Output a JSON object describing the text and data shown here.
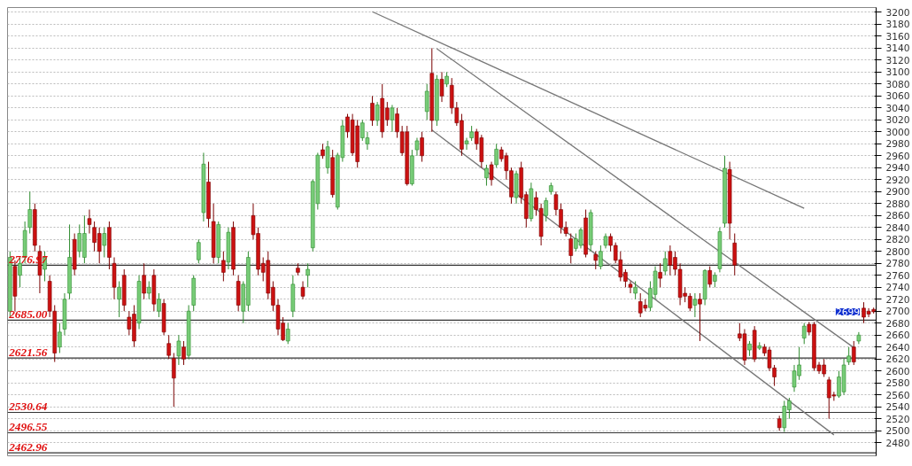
{
  "chart_data": {
    "type": "candlestick",
    "categories": [
      null,
      null,
      null,
      null,
      null,
      null,
      null,
      null,
      null,
      null,
      null,
      null,
      null,
      null,
      null,
      null,
      null,
      null,
      null,
      null,
      null,
      null,
      null,
      null,
      null,
      null,
      null,
      null,
      null,
      null,
      null,
      null,
      null,
      null,
      null,
      null,
      null,
      null,
      null,
      null,
      null,
      null,
      null,
      null,
      null,
      null,
      null,
      null,
      null,
      null,
      null,
      null,
      null,
      null,
      null,
      null,
      null,
      null,
      null,
      null,
      null,
      null,
      null,
      null,
      null,
      null,
      null,
      null,
      null,
      null,
      null,
      null,
      null,
      null,
      null,
      null,
      null,
      null,
      null,
      null,
      null,
      null,
      null,
      null,
      null,
      null,
      null,
      null,
      null,
      null,
      null,
      null,
      null,
      null,
      null,
      null,
      null,
      null,
      null,
      null,
      null,
      null,
      null,
      null,
      null,
      null,
      null,
      null,
      null,
      null,
      null,
      null,
      null,
      null,
      null,
      null,
      null,
      null,
      null,
      null,
      null,
      null,
      null,
      null,
      null,
      null,
      null,
      null,
      null,
      null,
      null,
      null,
      null,
      null,
      null,
      null,
      null,
      null,
      null,
      null,
      null,
      null,
      null,
      null,
      null,
      null,
      null,
      null,
      null,
      null,
      null,
      null,
      null,
      null,
      null,
      null,
      null,
      null,
      null,
      null,
      null,
      null,
      null,
      null,
      null,
      null,
      null,
      null,
      null,
      null,
      null,
      null,
      null,
      null,
      null
    ],
    "ohlc": [
      [
        2700,
        2800,
        2690,
        2790
      ],
      [
        2775,
        2785,
        2700,
        2725
      ],
      [
        2760,
        2790,
        2740,
        2780
      ],
      [
        2790,
        2850,
        2780,
        2835
      ],
      [
        2840,
        2900,
        2830,
        2870
      ],
      [
        2870,
        2880,
        2800,
        2810
      ],
      [
        2800,
        2810,
        2730,
        2760
      ],
      [
        2770,
        2800,
        2750,
        2790
      ],
      [
        2750,
        2760,
        2690,
        2700
      ],
      [
        2700,
        2710,
        2615,
        2630
      ],
      [
        2640,
        2680,
        2630,
        2665
      ],
      [
        2670,
        2730,
        2660,
        2720
      ],
      [
        2730,
        2845,
        2720,
        2790
      ],
      [
        2820,
        2830,
        2760,
        2770
      ],
      [
        2800,
        2845,
        2790,
        2830
      ],
      [
        2790,
        2860,
        2780,
        2830
      ],
      [
        2855,
        2870,
        2830,
        2845
      ],
      [
        2840,
        2850,
        2800,
        2815
      ],
      [
        2830,
        2840,
        2780,
        2800
      ],
      [
        2810,
        2840,
        2790,
        2830
      ],
      [
        2840,
        2850,
        2770,
        2790
      ],
      [
        2780,
        2790,
        2720,
        2740
      ],
      [
        2720,
        2750,
        2690,
        2740
      ],
      [
        2760,
        2770,
        2700,
        2710
      ],
      [
        2690,
        2700,
        2660,
        2670
      ],
      [
        2695,
        2710,
        2640,
        2650
      ],
      [
        2680,
        2760,
        2670,
        2750
      ],
      [
        2760,
        2780,
        2720,
        2730
      ],
      [
        2730,
        2750,
        2720,
        2740
      ],
      [
        2760,
        2770,
        2700,
        2712
      ],
      [
        2700,
        2730,
        2690,
        2720
      ],
      [
        2713,
        2720,
        2660,
        2665
      ],
      [
        2646,
        2660,
        2620,
        2626
      ],
      [
        2621,
        2630,
        2540,
        2588
      ],
      [
        2625,
        2660,
        2610,
        2650
      ],
      [
        2640,
        2650,
        2610,
        2620
      ],
      [
        2626,
        2710,
        2620,
        2700
      ],
      [
        2710,
        2760,
        2700,
        2755
      ],
      [
        2786,
        2820,
        2780,
        2815
      ],
      [
        2865,
        2965,
        2850,
        2946
      ],
      [
        2916,
        2950,
        2840,
        2855
      ],
      [
        2850,
        2880,
        2780,
        2790
      ],
      [
        2790,
        2850,
        2780,
        2845
      ],
      [
        2785,
        2800,
        2750,
        2765
      ],
      [
        2782,
        2840,
        2770,
        2832
      ],
      [
        2840,
        2850,
        2760,
        2770
      ],
      [
        2750,
        2760,
        2700,
        2710
      ],
      [
        2700,
        2750,
        2680,
        2745
      ],
      [
        2710,
        2800,
        2700,
        2790
      ],
      [
        2860,
        2880,
        2820,
        2828
      ],
      [
        2830,
        2840,
        2760,
        2770
      ],
      [
        2780,
        2790,
        2750,
        2765
      ],
      [
        2785,
        2800,
        2720,
        2730
      ],
      [
        2740,
        2750,
        2700,
        2710
      ],
      [
        2710,
        2720,
        2660,
        2670
      ],
      [
        2680,
        2690,
        2650,
        2652
      ],
      [
        2650,
        2680,
        2645,
        2670
      ],
      [
        2700,
        2760,
        2690,
        2745
      ],
      [
        2772,
        2780,
        2760,
        2765
      ],
      [
        2740,
        2750,
        2720,
        2725
      ],
      [
        2760,
        2780,
        2740,
        2770
      ],
      [
        2806,
        2920,
        2800,
        2917
      ],
      [
        2880,
        2965,
        2870,
        2961
      ],
      [
        2970,
        2980,
        2955,
        2960
      ],
      [
        2940,
        2985,
        2930,
        2975
      ],
      [
        2957,
        2970,
        2890,
        2895
      ],
      [
        2874,
        2965,
        2870,
        2961
      ],
      [
        2957,
        3020,
        2950,
        3010
      ],
      [
        3025,
        3030,
        2990,
        3000
      ],
      [
        3020,
        3030,
        2960,
        2965
      ],
      [
        3010,
        3020,
        2940,
        2950
      ],
      [
        2990,
        3020,
        2985,
        3015
      ],
      [
        2980,
        3000,
        2970,
        2990
      ],
      [
        3048,
        3060,
        3010,
        3019
      ],
      [
        3019,
        3050,
        3010,
        3045
      ],
      [
        3056,
        3080,
        2990,
        3000
      ],
      [
        3040,
        3050,
        3010,
        3020
      ],
      [
        3020,
        3045,
        3000,
        3040
      ],
      [
        3030,
        3040,
        2990,
        3000
      ],
      [
        3000,
        3010,
        2960,
        2965
      ],
      [
        3000,
        3010,
        2910,
        2913
      ],
      [
        2913,
        2970,
        2910,
        2960
      ],
      [
        2970,
        2990,
        2960,
        2985
      ],
      [
        2990,
        3000,
        2950,
        2960
      ],
      [
        3034,
        3080,
        3020,
        3068
      ],
      [
        3098,
        3140,
        3000,
        3019
      ],
      [
        3019,
        3095,
        3010,
        3088
      ],
      [
        3088,
        3100,
        3050,
        3060
      ],
      [
        3080,
        3100,
        3075,
        3093
      ],
      [
        3078,
        3090,
        3030,
        3040
      ],
      [
        3040,
        3050,
        3010,
        3015
      ],
      [
        3019,
        3030,
        2960,
        2971
      ],
      [
        2980,
        2990,
        2970,
        2985
      ],
      [
        2990,
        3010,
        2985,
        3000
      ],
      [
        3000,
        3005,
        2970,
        2980
      ],
      [
        2990,
        2995,
        2940,
        2950
      ],
      [
        2923,
        2945,
        2910,
        2939
      ],
      [
        2945,
        2950,
        2910,
        2920
      ],
      [
        2945,
        2980,
        2940,
        2971
      ],
      [
        2970,
        2975,
        2950,
        2955
      ],
      [
        2960,
        2965,
        2920,
        2935
      ],
      [
        2935,
        2940,
        2880,
        2891
      ],
      [
        2890,
        2935,
        2880,
        2930
      ],
      [
        2940,
        2950,
        2880,
        2890
      ],
      [
        2895,
        2900,
        2840,
        2855
      ],
      [
        2855,
        2915,
        2850,
        2905
      ],
      [
        2890,
        2900,
        2860,
        2870
      ],
      [
        2872,
        2880,
        2810,
        2825
      ],
      [
        2860,
        2890,
        2850,
        2885
      ],
      [
        2900,
        2915,
        2895,
        2910
      ],
      [
        2895,
        2900,
        2860,
        2870
      ],
      [
        2870,
        2880,
        2830,
        2840
      ],
      [
        2840,
        2850,
        2825,
        2830
      ],
      [
        2821,
        2830,
        2780,
        2793
      ],
      [
        2805,
        2830,
        2800,
        2821
      ],
      [
        2810,
        2840,
        2805,
        2836
      ],
      [
        2856,
        2870,
        2790,
        2795
      ],
      [
        2811,
        2870,
        2800,
        2865
      ],
      [
        2795,
        2800,
        2770,
        2785
      ],
      [
        2775,
        2810,
        2770,
        2800
      ],
      [
        2810,
        2830,
        2805,
        2825
      ],
      [
        2825,
        2830,
        2800,
        2810
      ],
      [
        2810,
        2815,
        2780,
        2785
      ],
      [
        2786,
        2800,
        2750,
        2757
      ],
      [
        2765,
        2770,
        2740,
        2750
      ],
      [
        2745,
        2750,
        2730,
        2740
      ],
      [
        2730,
        2750,
        2720,
        2740
      ],
      [
        2716,
        2730,
        2690,
        2697
      ],
      [
        2710,
        2720,
        2700,
        2705
      ],
      [
        2706,
        2750,
        2700,
        2738
      ],
      [
        2728,
        2775,
        2720,
        2767
      ],
      [
        2765,
        2780,
        2740,
        2755
      ],
      [
        2767,
        2800,
        2760,
        2788
      ],
      [
        2800,
        2810,
        2760,
        2777
      ],
      [
        2790,
        2800,
        2760,
        2770
      ],
      [
        2770,
        2780,
        2710,
        2723
      ],
      [
        2730,
        2740,
        2715,
        2725
      ],
      [
        2725,
        2730,
        2700,
        2705
      ],
      [
        2710,
        2730,
        2690,
        2720
      ],
      [
        2720,
        2730,
        2650,
        2712
      ],
      [
        2720,
        2770,
        2710,
        2768
      ],
      [
        2768,
        2775,
        2740,
        2745
      ],
      [
        2750,
        2765,
        2740,
        2760
      ],
      [
        2771,
        2840,
        2765,
        2833
      ],
      [
        2847,
        2960,
        2840,
        2939
      ],
      [
        2937,
        2950,
        2820,
        2847
      ],
      [
        2814,
        2830,
        2760,
        2777
      ],
      [
        2662,
        2680,
        2650,
        2655
      ],
      [
        2662,
        2670,
        2610,
        2618
      ],
      [
        2635,
        2650,
        2625,
        2645
      ],
      [
        2668,
        2675,
        2615,
        2620
      ],
      [
        2638,
        2648,
        2635,
        2642
      ],
      [
        2640,
        2645,
        2625,
        2630
      ],
      [
        2635,
        2640,
        2600,
        2605
      ],
      [
        2605,
        2610,
        2575,
        2590
      ],
      [
        2520,
        2525,
        2500,
        2505
      ],
      [
        2505,
        2550,
        2498,
        2541
      ],
      [
        2535,
        2555,
        2520,
        2550
      ],
      [
        2573,
        2610,
        2565,
        2600
      ],
      [
        2592,
        2640,
        2585,
        2610
      ],
      [
        2655,
        2680,
        2645,
        2675
      ],
      [
        2678,
        2682,
        2660,
        2665
      ],
      [
        2678,
        2682,
        2600,
        2605
      ],
      [
        2610,
        2615,
        2595,
        2600
      ],
      [
        2610,
        2620,
        2590,
        2595
      ],
      [
        2585,
        2590,
        2520,
        2555
      ],
      [
        2560,
        2565,
        2550,
        2558
      ],
      [
        2558,
        2600,
        2555,
        2590
      ],
      [
        2565,
        2620,
        2560,
        2610
      ],
      [
        2615,
        2640,
        2610,
        2625
      ],
      [
        2640,
        2650,
        2610,
        2615
      ],
      [
        2650,
        2665,
        2645,
        2660
      ],
      [
        2705,
        2715,
        2680,
        2690
      ],
      [
        2700,
        2705,
        2690,
        2695
      ],
      [
        2703,
        2706,
        2696,
        2699
      ]
    ],
    "series": [
      {
        "type": "line",
        "color": "#777777",
        "values": [
          null,
          null,
          null,
          null,
          null,
          null,
          null,
          null,
          null,
          null,
          null,
          null,
          null,
          null,
          null,
          null,
          null,
          null,
          null,
          null,
          null,
          null,
          null,
          null,
          null,
          null,
          null,
          null,
          null,
          null,
          null,
          null,
          null,
          null,
          null,
          null,
          null,
          null,
          null,
          null,
          null,
          null,
          null,
          null,
          null,
          null,
          null,
          null,
          null,
          null,
          null,
          null,
          null,
          null,
          null,
          null,
          null,
          null,
          null,
          null,
          null,
          null,
          null,
          null,
          null,
          null,
          null,
          null,
          null,
          null,
          null,
          null,
          null,
          3201,
          null,
          null,
          null,
          null,
          null,
          null,
          null,
          null,
          null,
          null,
          null,
          null,
          null,
          null,
          null,
          null,
          null,
          null,
          null,
          null,
          null,
          null,
          null,
          null,
          null,
          null,
          null,
          null,
          null,
          null,
          null,
          null,
          null,
          null,
          null,
          null,
          null,
          null,
          null,
          null,
          null,
          null,
          null,
          null,
          null,
          null,
          null,
          null,
          null,
          null,
          null,
          null,
          null,
          null,
          null,
          null,
          null,
          null,
          null,
          null,
          null,
          null,
          null,
          null,
          null,
          null,
          null,
          null,
          null,
          null,
          null,
          null,
          null,
          null,
          null,
          null,
          null,
          null,
          null,
          null,
          null,
          null,
          null,
          null,
          null,
          null,
          2872,
          null,
          null,
          null,
          null,
          null,
          null,
          null,
          null,
          null,
          null,
          null,
          null,
          null,
          null
        ]
      },
      {
        "type": "line",
        "color": "#777777",
        "values": [
          null,
          null,
          null,
          null,
          null,
          null,
          null,
          null,
          null,
          null,
          null,
          null,
          null,
          null,
          null,
          null,
          null,
          null,
          null,
          null,
          null,
          null,
          null,
          null,
          null,
          null,
          null,
          null,
          null,
          null,
          null,
          null,
          null,
          null,
          null,
          null,
          null,
          null,
          null,
          null,
          null,
          null,
          null,
          null,
          null,
          null,
          null,
          null,
          null,
          null,
          null,
          null,
          null,
          null,
          null,
          null,
          null,
          null,
          null,
          null,
          null,
          null,
          null,
          null,
          null,
          null,
          null,
          null,
          null,
          null,
          null,
          null,
          null,
          null,
          null,
          null,
          null,
          null,
          null,
          null,
          null,
          null,
          null,
          null,
          null,
          null,
          3139,
          null,
          null,
          null,
          null,
          null,
          null,
          null,
          null,
          null,
          null,
          null,
          null,
          null,
          null,
          null,
          null,
          null,
          null,
          null,
          null,
          null,
          null,
          null,
          null,
          null,
          null,
          null,
          null,
          null,
          null,
          null,
          null,
          null,
          null,
          null,
          null,
          null,
          null,
          null,
          null,
          null,
          null,
          null,
          null,
          null,
          null,
          null,
          null,
          null,
          null,
          null,
          null,
          null,
          null,
          null,
          null,
          null,
          null,
          null,
          null,
          null,
          null,
          null,
          null,
          null,
          null,
          null,
          null,
          null,
          null,
          null,
          null,
          null,
          null,
          null,
          null,
          null,
          null,
          null,
          null,
          null,
          null,
          null,
          2639,
          null,
          null,
          null,
          null
        ]
      },
      {
        "type": "line",
        "color": "#777777",
        "values": [
          null,
          null,
          null,
          null,
          null,
          null,
          null,
          null,
          null,
          null,
          null,
          null,
          null,
          null,
          null,
          null,
          null,
          null,
          null,
          null,
          null,
          null,
          null,
          null,
          null,
          null,
          null,
          null,
          null,
          null,
          null,
          null,
          null,
          null,
          null,
          null,
          null,
          null,
          null,
          null,
          null,
          null,
          null,
          null,
          null,
          null,
          null,
          null,
          null,
          null,
          null,
          null,
          null,
          null,
          null,
          null,
          null,
          null,
          null,
          null,
          null,
          null,
          null,
          null,
          null,
          null,
          null,
          null,
          null,
          null,
          null,
          null,
          null,
          null,
          null,
          null,
          null,
          null,
          null,
          null,
          null,
          null,
          null,
          null,
          null,
          3003,
          null,
          null,
          null,
          null,
          null,
          null,
          null,
          null,
          null,
          null,
          null,
          null,
          null,
          null,
          null,
          null,
          null,
          null,
          null,
          null,
          null,
          null,
          null,
          null,
          null,
          null,
          null,
          null,
          null,
          null,
          null,
          null,
          null,
          null,
          null,
          null,
          null,
          null,
          null,
          null,
          null,
          null,
          null,
          null,
          null,
          null,
          null,
          null,
          null,
          null,
          null,
          null,
          null,
          null,
          null,
          null,
          null,
          null,
          null,
          null,
          null,
          null,
          null,
          null,
          null,
          null,
          null,
          null,
          null,
          null,
          null,
          null,
          null,
          null,
          null,
          null,
          null,
          null,
          null,
          null,
          2493,
          null,
          null,
          null,
          null,
          null,
          null,
          null,
          null
        ]
      }
    ],
    "ylim": [
      2458,
      3208
    ],
    "yticks": [
      2480,
      2500,
      2520,
      2540,
      2560,
      2580,
      2600,
      2620,
      2640,
      2660,
      2680,
      2700,
      2720,
      2740,
      2760,
      2780,
      2800,
      2820,
      2840,
      2860,
      2880,
      2900,
      2920,
      2940,
      2960,
      2980,
      3000,
      3020,
      3040,
      3060,
      3080,
      3100,
      3120,
      3140,
      3160,
      3180,
      3200
    ],
    "tick_labels": "y",
    "grid": "y",
    "ref_lines": [
      {
        "axis": "y",
        "value": 2776.97,
        "label": "2776.97",
        "color": "#333333"
      },
      {
        "axis": "y",
        "value": 2685.0,
        "label": "2685.00",
        "color": "#333333"
      },
      {
        "axis": "y",
        "value": 2621.56,
        "label": "2621.56",
        "color": "#333333"
      },
      {
        "axis": "y",
        "value": 2530.64,
        "label": "2530.64",
        "color": "#333333"
      },
      {
        "axis": "y",
        "value": 2496.55,
        "label": "2496.55",
        "color": "#333333"
      },
      {
        "axis": "y",
        "value": 2462.96,
        "label": "2462.96",
        "color": "#333333"
      }
    ],
    "annotations": [
      "2699"
    ]
  }
}
